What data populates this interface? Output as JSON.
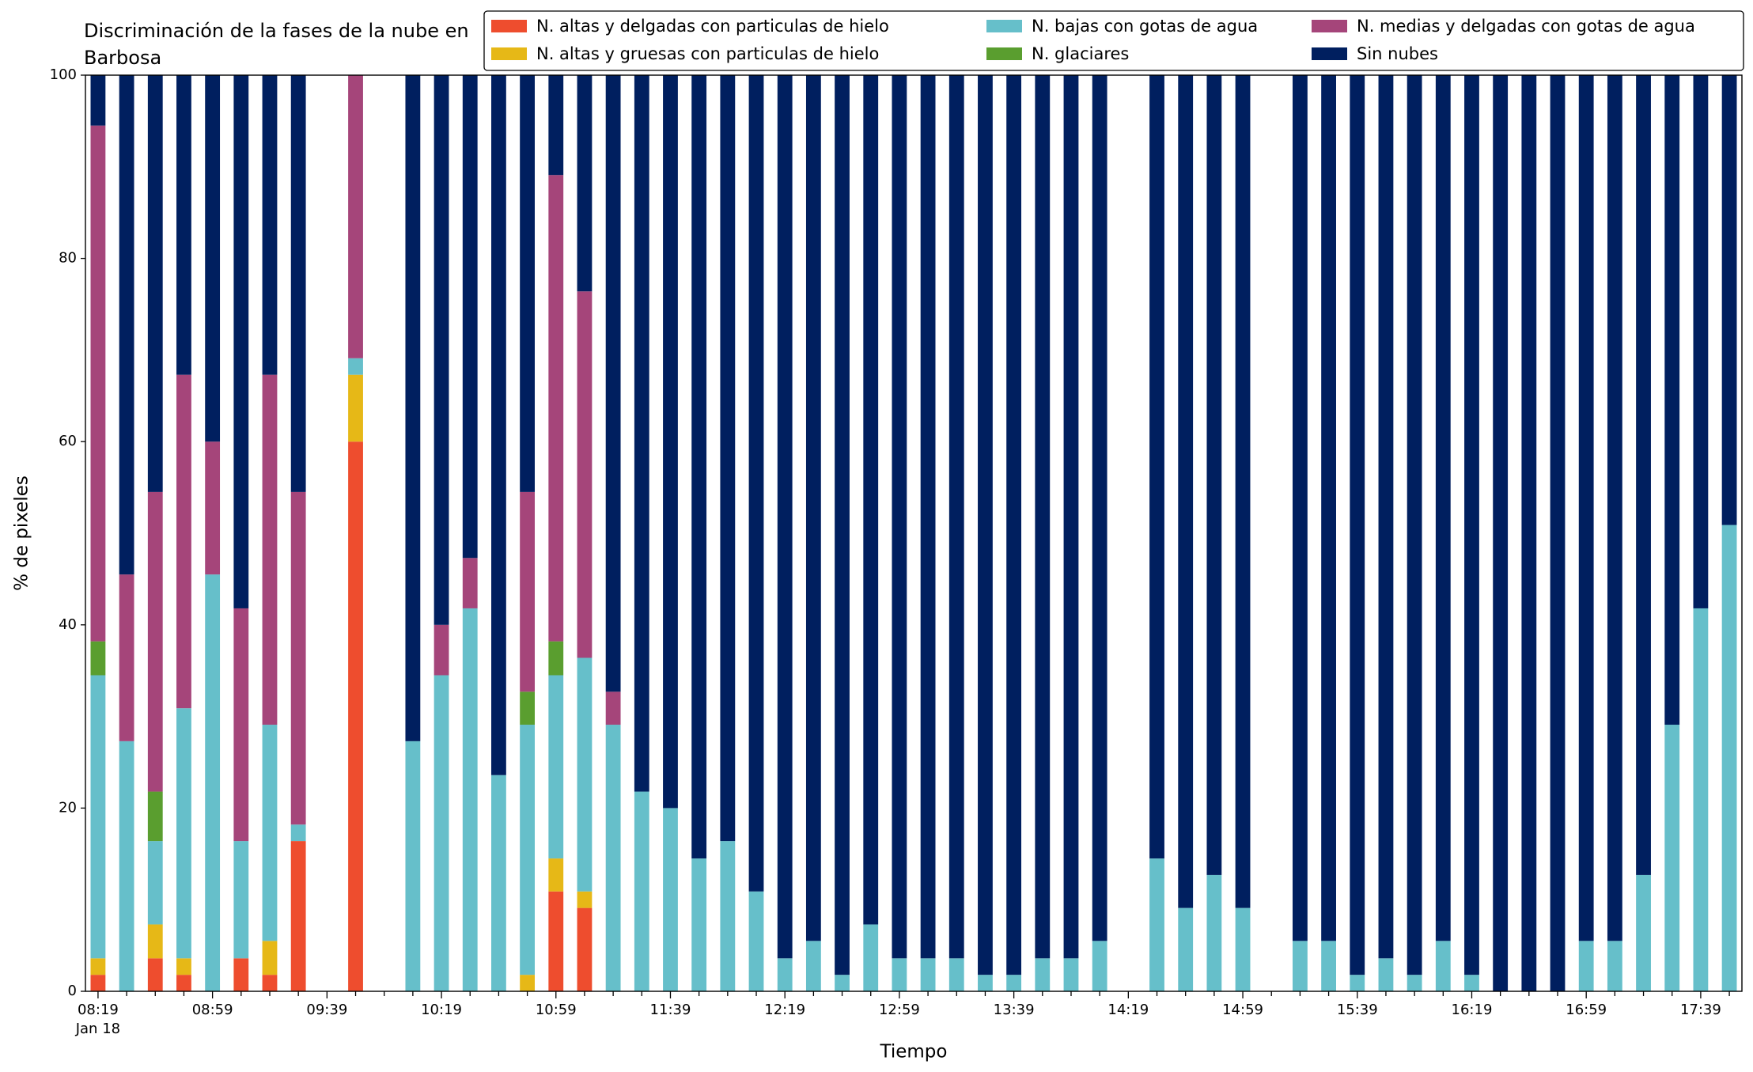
{
  "chart_data": {
    "type": "stacked_bar",
    "title": "Discriminación de la fases de la nube en Barbosa",
    "xlabel": "Tiempo",
    "ylabel": "% de pixeles",
    "x_date_label": "Jan 18",
    "categories": [
      "08:19",
      null,
      null,
      null,
      "08:59",
      null,
      null,
      null,
      "09:39",
      null,
      null,
      null,
      "10:19",
      null,
      null,
      null,
      "10:59",
      null,
      null,
      null,
      "11:39",
      null,
      null,
      null,
      "12:19",
      null,
      null,
      null,
      "12:59",
      null,
      null,
      null,
      "13:39",
      null,
      null,
      null,
      "14:19",
      null,
      null,
      null,
      "14:59",
      null,
      null,
      null,
      "15:39",
      null,
      null,
      null,
      "16:19",
      null,
      null,
      null,
      "16:59",
      null,
      null,
      null,
      "17:39",
      null
    ],
    "ylim": [
      0,
      100
    ],
    "yticks": [
      0,
      20,
      40,
      60,
      80,
      100
    ],
    "legend": "top-right",
    "series": [
      {
        "name": "N. altas y delgadas con particulas de hielo",
        "color": "#ee4d2e",
        "values": [
          1.8,
          0,
          3.6,
          1.8,
          0,
          3.6,
          1.8,
          16.4,
          null,
          60,
          null,
          0,
          0,
          0,
          0,
          0,
          10.9,
          9.1,
          0,
          0,
          0,
          0,
          0,
          0,
          0,
          0,
          0,
          0,
          0,
          0,
          0,
          0,
          0,
          0,
          0,
          0,
          null,
          0,
          0,
          0,
          0,
          null,
          0,
          0,
          0,
          0,
          0,
          0,
          0,
          0,
          0,
          0,
          0,
          0,
          0,
          0,
          0,
          0
        ]
      },
      {
        "name": "N. altas y gruesas con particulas de hielo",
        "color": "#e6b817",
        "values": [
          1.8,
          0,
          3.7,
          1.8,
          0,
          0,
          3.7,
          0,
          null,
          7.3,
          null,
          0,
          0,
          0,
          0,
          1.8,
          3.6,
          1.8,
          0,
          0,
          0,
          0,
          0,
          0,
          0,
          0,
          0,
          0,
          0,
          0,
          0,
          0,
          0,
          0,
          0,
          0,
          null,
          0,
          0,
          0,
          0,
          null,
          0,
          0,
          0,
          0,
          0,
          0,
          0,
          0,
          0,
          0,
          0,
          0,
          0,
          0,
          0,
          0
        ]
      },
      {
        "name": "N. bajas con gotas de agua",
        "color": "#66bfca",
        "values": [
          30.9,
          27.3,
          9.1,
          27.3,
          45.5,
          12.8,
          23.6,
          1.8,
          null,
          1.8,
          null,
          27.3,
          34.5,
          41.8,
          23.6,
          27.3,
          20,
          25.5,
          29.1,
          21.8,
          20,
          14.5,
          16.4,
          10.9,
          3.6,
          5.5,
          1.8,
          7.3,
          3.6,
          3.6,
          3.6,
          1.8,
          1.8,
          3.6,
          3.6,
          5.5,
          null,
          14.5,
          9.1,
          12.7,
          9.1,
          null,
          5.5,
          5.5,
          1.8,
          3.6,
          1.8,
          5.5,
          1.8,
          0,
          0,
          0,
          5.5,
          5.5,
          12.7,
          29.1,
          41.8,
          50.9
        ]
      },
      {
        "name": "N. glaciares",
        "color": "#5a9e2f",
        "values": [
          3.7,
          0,
          5.4,
          0,
          0,
          0,
          0,
          0,
          null,
          0,
          null,
          0,
          0,
          0,
          0,
          3.6,
          3.7,
          0,
          0,
          0,
          0,
          0,
          0,
          0,
          0,
          0,
          0,
          0,
          0,
          0,
          0,
          0,
          0,
          0,
          0,
          0,
          null,
          0,
          0,
          0,
          0,
          null,
          0,
          0,
          0,
          0,
          0,
          0,
          0,
          0,
          0,
          0,
          0,
          0,
          0,
          0,
          0,
          0
        ]
      },
      {
        "name": "N. medias y delgadas con gotas de agua",
        "color": "#a5457a",
        "values": [
          56.3,
          18.2,
          32.7,
          36.4,
          14.5,
          25.4,
          38.2,
          36.3,
          null,
          30.9,
          null,
          0,
          5.5,
          5.5,
          0,
          21.8,
          50.9,
          40,
          3.6,
          0,
          0,
          0,
          0,
          0,
          0,
          0,
          0,
          0,
          0,
          0,
          0,
          0,
          0,
          0,
          0,
          0,
          null,
          0,
          0,
          0,
          0,
          null,
          0,
          0,
          0,
          0,
          0,
          0,
          0,
          0,
          0,
          0,
          0,
          0,
          0,
          0,
          0,
          0
        ]
      },
      {
        "name": "Sin nubes",
        "color": "#001f5f",
        "values": [
          5.5,
          54.5,
          45.5,
          32.7,
          40,
          58.2,
          32.7,
          45.5,
          null,
          0,
          null,
          72.7,
          60,
          52.7,
          76.4,
          45.5,
          10.9,
          23.6,
          67.3,
          78.2,
          80,
          85.5,
          83.6,
          89.1,
          96.4,
          94.5,
          98.2,
          92.7,
          96.4,
          96.4,
          96.4,
          98.2,
          98.2,
          96.4,
          96.4,
          94.5,
          null,
          85.5,
          90.9,
          87.3,
          90.9,
          null,
          94.5,
          94.5,
          98.2,
          96.4,
          98.2,
          94.5,
          98.2,
          100,
          100,
          100,
          94.5,
          94.5,
          87.3,
          70.9,
          58.2,
          49.1
        ]
      }
    ]
  }
}
